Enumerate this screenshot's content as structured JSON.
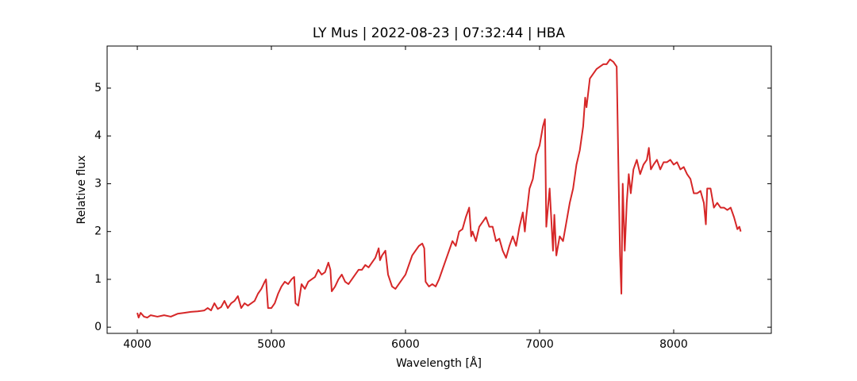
{
  "chart_data": {
    "type": "line",
    "title": "LY Mus | 2022-08-23 | 07:32:44 | HBA",
    "xlabel": "Wavelength [Å]",
    "ylabel": "Relative flux",
    "color": "#d62728",
    "xlim": [
      3775,
      8728
    ],
    "ylim": [
      -0.13,
      5.88
    ],
    "xticks": [
      4000,
      5000,
      6000,
      7000,
      8000
    ],
    "yticks": [
      0,
      1,
      2,
      3,
      4,
      5
    ],
    "x": [
      4000,
      4010,
      4025,
      4050,
      4075,
      4100,
      4150,
      4200,
      4250,
      4300,
      4350,
      4400,
      4450,
      4500,
      4525,
      4550,
      4575,
      4600,
      4625,
      4650,
      4675,
      4700,
      4725,
      4750,
      4775,
      4800,
      4825,
      4850,
      4875,
      4900,
      4925,
      4950,
      4960,
      4975,
      5000,
      5025,
      5050,
      5075,
      5100,
      5125,
      5150,
      5170,
      5180,
      5200,
      5225,
      5250,
      5275,
      5300,
      5325,
      5350,
      5375,
      5400,
      5425,
      5440,
      5450,
      5475,
      5500,
      5525,
      5550,
      5575,
      5600,
      5625,
      5650,
      5675,
      5700,
      5725,
      5750,
      5775,
      5800,
      5810,
      5825,
      5850,
      5870,
      5900,
      5925,
      5950,
      5975,
      6000,
      6025,
      6050,
      6075,
      6100,
      6125,
      6140,
      6150,
      6175,
      6200,
      6225,
      6250,
      6275,
      6300,
      6325,
      6350,
      6375,
      6400,
      6425,
      6450,
      6475,
      6490,
      6500,
      6525,
      6550,
      6575,
      6600,
      6625,
      6650,
      6675,
      6700,
      6725,
      6750,
      6775,
      6800,
      6825,
      6850,
      6875,
      6890,
      6900,
      6925,
      6950,
      6975,
      7000,
      7025,
      7040,
      7050,
      7075,
      7100,
      7110,
      7125,
      7150,
      7175,
      7200,
      7225,
      7250,
      7275,
      7300,
      7325,
      7340,
      7350,
      7375,
      7400,
      7425,
      7450,
      7475,
      7500,
      7525,
      7550,
      7575,
      7590,
      7600,
      7610,
      7620,
      7635,
      7650,
      7665,
      7680,
      7700,
      7725,
      7750,
      7775,
      7800,
      7815,
      7830,
      7850,
      7875,
      7900,
      7925,
      7950,
      7975,
      8000,
      8025,
      8050,
      8075,
      8100,
      8125,
      8150,
      8175,
      8200,
      8225,
      8240,
      8250,
      8275,
      8300,
      8325,
      8350,
      8375,
      8400,
      8425,
      8450,
      8475,
      8490,
      8500
    ],
    "values": [
      0.3,
      0.2,
      0.3,
      0.22,
      0.2,
      0.25,
      0.22,
      0.25,
      0.22,
      0.28,
      0.3,
      0.32,
      0.33,
      0.35,
      0.4,
      0.35,
      0.5,
      0.38,
      0.42,
      0.55,
      0.4,
      0.5,
      0.55,
      0.65,
      0.4,
      0.5,
      0.45,
      0.5,
      0.55,
      0.7,
      0.8,
      0.95,
      1.0,
      0.4,
      0.4,
      0.5,
      0.7,
      0.85,
      0.95,
      0.9,
      1.0,
      1.05,
      0.5,
      0.45,
      0.9,
      0.8,
      0.95,
      1.0,
      1.05,
      1.2,
      1.1,
      1.15,
      1.35,
      1.2,
      0.75,
      0.85,
      1.0,
      1.1,
      0.95,
      0.9,
      1.0,
      1.1,
      1.2,
      1.2,
      1.3,
      1.25,
      1.35,
      1.45,
      1.65,
      1.4,
      1.5,
      1.6,
      1.1,
      0.85,
      0.8,
      0.9,
      1.0,
      1.1,
      1.3,
      1.5,
      1.6,
      1.7,
      1.75,
      1.65,
      0.95,
      0.85,
      0.9,
      0.85,
      1.0,
      1.2,
      1.4,
      1.6,
      1.8,
      1.7,
      2.0,
      2.05,
      2.3,
      2.5,
      1.9,
      2.0,
      1.8,
      2.1,
      2.2,
      2.3,
      2.1,
      2.1,
      1.8,
      1.85,
      1.6,
      1.45,
      1.7,
      1.9,
      1.7,
      2.1,
      2.4,
      2.0,
      2.3,
      2.9,
      3.1,
      3.6,
      3.8,
      4.2,
      4.35,
      2.1,
      2.9,
      1.6,
      2.35,
      1.5,
      1.9,
      1.8,
      2.2,
      2.6,
      2.9,
      3.4,
      3.7,
      4.2,
      4.8,
      4.6,
      5.2,
      5.3,
      5.4,
      5.45,
      5.5,
      5.5,
      5.6,
      5.55,
      5.45,
      3.0,
      1.5,
      0.7,
      3.0,
      1.6,
      2.6,
      3.2,
      2.8,
      3.3,
      3.5,
      3.2,
      3.4,
      3.5,
      3.75,
      3.3,
      3.4,
      3.5,
      3.3,
      3.45,
      3.45,
      3.5,
      3.4,
      3.45,
      3.3,
      3.35,
      3.2,
      3.1,
      2.8,
      2.8,
      2.85,
      2.6,
      2.15,
      2.9,
      2.9,
      2.5,
      2.6,
      2.5,
      2.5,
      2.45,
      2.5,
      2.3,
      2.05,
      2.1,
      2.0
    ]
  }
}
